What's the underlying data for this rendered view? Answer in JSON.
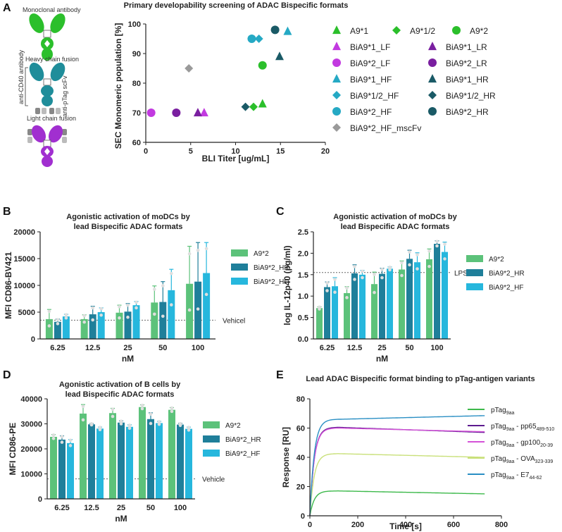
{
  "panel_labels": {
    "a": "A",
    "b": "B",
    "c": "C",
    "d": "D",
    "e": "E"
  },
  "schematic_labels": {
    "monoclonal": "Monoclonal antibody",
    "heavy": "Heavy chain fusion",
    "light": "Light chain fusion",
    "anti_cd40": "anti-CD40 antibody",
    "anti_ptag": "anti-pTag scFv"
  },
  "colors": {
    "green": "#2bbf2b",
    "purple_light": "#c23ae0",
    "purple_dark": "#7a1fa0",
    "teal_light": "#25a9c4",
    "teal_dark": "#1a5a66",
    "gray": "#9a9a9a",
    "bar_green": "#5cc27a",
    "bar_teal": "#1f7f9a",
    "bar_cyan": "#26b7dd"
  },
  "chart_data": [
    {
      "id": "A",
      "type": "scatter",
      "title": "Primary developability screening of ADAC Bispecific formats",
      "xlabel": "BLI Titer [ug/mL]",
      "ylabel": "SEC Monomeric population  [%]",
      "xlim": [
        0,
        20
      ],
      "ylim": [
        60,
        100
      ],
      "xticks": [
        0,
        5,
        10,
        15,
        20
      ],
      "yticks": [
        60,
        70,
        80,
        90,
        100
      ],
      "series": [
        {
          "name": "A9*1",
          "marker": "triangle",
          "color": "green",
          "points": [
            [
              13.0,
              73
            ]
          ]
        },
        {
          "name": "A9*1/2",
          "marker": "diamond",
          "color": "green",
          "points": [
            [
              12.0,
              72
            ]
          ]
        },
        {
          "name": "A9*2",
          "marker": "circle",
          "color": "green",
          "points": [
            [
              13.0,
              86
            ]
          ]
        },
        {
          "name": "BiA9*1_LF",
          "marker": "triangle",
          "color": "purple_light",
          "points": [
            [
              6.5,
              70
            ]
          ]
        },
        {
          "name": "BiA9*1_LR",
          "marker": "triangle",
          "color": "purple_dark",
          "points": [
            [
              5.8,
              70
            ]
          ]
        },
        {
          "name": "BiA9*2_LF",
          "marker": "circle",
          "color": "purple_light",
          "points": [
            [
              0.6,
              70
            ]
          ]
        },
        {
          "name": "BiA9*2_LR",
          "marker": "circle",
          "color": "purple_dark",
          "points": [
            [
              3.4,
              70
            ]
          ]
        },
        {
          "name": "BiA9*1_HF",
          "marker": "triangle",
          "color": "teal_light",
          "points": [
            [
              15.8,
              97.5
            ]
          ]
        },
        {
          "name": "BiA9*1_HR",
          "marker": "triangle",
          "color": "teal_dark",
          "points": [
            [
              14.9,
              89
            ]
          ]
        },
        {
          "name": "BiA9*1/2_HF",
          "marker": "diamond",
          "color": "teal_light",
          "points": [
            [
              12.6,
              95
            ]
          ]
        },
        {
          "name": "BiA9*1/2_HR",
          "marker": "diamond",
          "color": "teal_dark",
          "points": [
            [
              11.1,
              72
            ]
          ]
        },
        {
          "name": "BiA9*2_HF",
          "marker": "circle",
          "color": "teal_light",
          "points": [
            [
              11.8,
              95
            ]
          ]
        },
        {
          "name": "BiA9*2_HR",
          "marker": "circle",
          "color": "teal_dark",
          "points": [
            [
              14.4,
              98
            ]
          ]
        },
        {
          "name": "BiA9*2_HF_mscFv",
          "marker": "diamond",
          "color": "gray",
          "points": [
            [
              4.8,
              85
            ]
          ]
        }
      ]
    },
    {
      "id": "B",
      "type": "bar",
      "title": "Agonistic activation of moDCs by",
      "title2": "lead Bispecific ADAC formats",
      "xlabel": "nM",
      "ylabel": "MFI CD86-BV421",
      "categories": [
        "6.25",
        "12.5",
        "25",
        "50",
        "100"
      ],
      "ylim": [
        0,
        20000
      ],
      "yticks": [
        0,
        5000,
        10000,
        15000,
        20000
      ],
      "reference": {
        "label": "Vehicel",
        "value": 3500
      },
      "series": [
        {
          "name": "A9*2",
          "color": "bar_green",
          "values": [
            3700,
            3700,
            4900,
            6800,
            10300
          ],
          "errors": [
            1800,
            800,
            1400,
            3100,
            7000
          ]
        },
        {
          "name": "BiA9*2_HR",
          "color": "bar_teal",
          "values": [
            3200,
            4600,
            5100,
            6900,
            10700
          ],
          "errors": [
            500,
            1500,
            1500,
            3800,
            7300
          ]
        },
        {
          "name": "BiA9*2_HF",
          "color": "bar_cyan",
          "values": [
            4200,
            5000,
            6300,
            9100,
            12300
          ],
          "errors": [
            400,
            800,
            700,
            3900,
            5700
          ]
        }
      ]
    },
    {
      "id": "C",
      "type": "bar",
      "title": "Agonistic activation of moDCs by",
      "title2": "lead Bispecific ADAC formats",
      "xlabel": "nM",
      "ylabel": "log IL-12p40 (pg/ml)",
      "categories": [
        "6.25",
        "12.5",
        "25",
        "50",
        "100"
      ],
      "ylim": [
        0,
        2.5
      ],
      "yticks": [
        0.0,
        0.5,
        1.0,
        1.5,
        2.0,
        2.5
      ],
      "reference": {
        "label": "LPS",
        "value": 1.55
      },
      "series": [
        {
          "name": "A9*2",
          "color": "bar_green",
          "values": [
            0.72,
            1.07,
            1.28,
            1.62,
            1.86
          ],
          "errors": [
            0.03,
            0.15,
            0.28,
            0.2,
            0.24
          ]
        },
        {
          "name": "BiA9*2_HR",
          "color": "bar_teal",
          "values": [
            1.21,
            1.53,
            1.52,
            1.87,
            2.22
          ],
          "errors": [
            0.12,
            0.2,
            0.13,
            0.2,
            0.07
          ]
        },
        {
          "name": "BiA9*2_HF",
          "color": "bar_cyan",
          "values": [
            1.23,
            1.5,
            1.64,
            1.79,
            2.03
          ],
          "errors": [
            0.2,
            0.1,
            0.04,
            0.22,
            0.23
          ]
        }
      ]
    },
    {
      "id": "D",
      "type": "bar",
      "title": "Agonistic activation of B cells by",
      "title2": "lead Bispecific ADAC formats",
      "xlabel": "nM",
      "ylabel": "MFI CD86-PE",
      "categories": [
        "6.25",
        "12.5",
        "25",
        "50",
        "100"
      ],
      "ylim": [
        0,
        40000
      ],
      "yticks": [
        0,
        10000,
        20000,
        30000,
        40000
      ],
      "reference": {
        "label": "Vehicle",
        "value": 8000
      },
      "series": [
        {
          "name": "A9*2",
          "color": "bar_green",
          "values": [
            24800,
            34100,
            34300,
            36700,
            35600
          ],
          "errors": [
            900,
            3600,
            1900,
            900,
            900
          ]
        },
        {
          "name": "BiA9*2_HR",
          "color": "bar_teal",
          "values": [
            23700,
            29800,
            30500,
            31900,
            29700
          ],
          "errors": [
            1500,
            300,
            700,
            2500,
            500
          ]
        },
        {
          "name": "BiA9*2_HF",
          "color": "bar_cyan",
          "values": [
            22300,
            28100,
            28800,
            30300,
            28000
          ],
          "errors": [
            1400,
            600,
            800,
            700,
            700
          ]
        }
      ]
    },
    {
      "id": "E",
      "type": "line",
      "title": "Lead ADAC Bispecific format binding to pTag-antigen variants",
      "xlabel": "Time [s]",
      "ylabel": "Response [RU]",
      "xlim": [
        0,
        800
      ],
      "ylim": [
        0,
        80
      ],
      "xticks": [
        0,
        200,
        400,
        600,
        800
      ],
      "yticks": [
        0,
        20,
        40,
        60,
        80
      ],
      "series": [
        {
          "name": "pTag",
          "sub": "9aa",
          "suffix": "",
          "sub2": "",
          "color": "#3cb94a",
          "plateau": 17,
          "end": 15
        },
        {
          "name": "pTag",
          "sub": "9aa",
          "suffix": " - pp65",
          "sub2": "489-510",
          "color": "#5c1a8f",
          "plateau": 60.5,
          "end": 57
        },
        {
          "name": "pTag",
          "sub": "9aa",
          "suffix": " - gp100",
          "sub2": "20-39",
          "color": "#d452d8",
          "plateau": 60,
          "end": 57.5
        },
        {
          "name": "pTag",
          "sub": "9aa",
          "suffix": " - OVA",
          "sub2": "323-339",
          "color": "#c9e07a",
          "plateau": 42.5,
          "end": 40
        },
        {
          "name": "pTag",
          "sub": "9aa",
          "suffix": " - E7",
          "sub2": "44-62",
          "color": "#2a8fc4",
          "plateau": 66,
          "end": 68.5
        }
      ]
    }
  ]
}
